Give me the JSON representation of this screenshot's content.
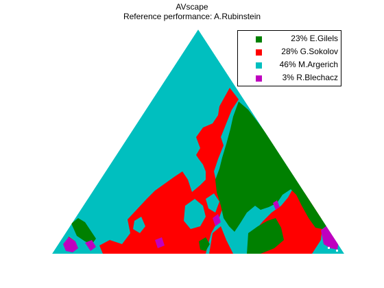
{
  "chart_data": {
    "type": "ternary-map",
    "title": "AVscape",
    "subtitle": "Reference performance: A.Rubinstein",
    "legend_position": "top-right",
    "series": [
      {
        "name": "E.Gilels",
        "label": "23% E.Gilels",
        "share_pct": 23,
        "color": "#008000"
      },
      {
        "name": "G.Sokolov",
        "label": "28% G.Sokolov",
        "share_pct": 28,
        "color": "#ff0000"
      },
      {
        "name": "M.Argerich",
        "label": "46% M.Argerich",
        "share_pct": 46,
        "color": "#00bfbf"
      },
      {
        "name": "R.Blechacz",
        "label": "  3% R.Blechacz",
        "share_pct": 3,
        "color": "#bf00bf"
      }
    ]
  }
}
